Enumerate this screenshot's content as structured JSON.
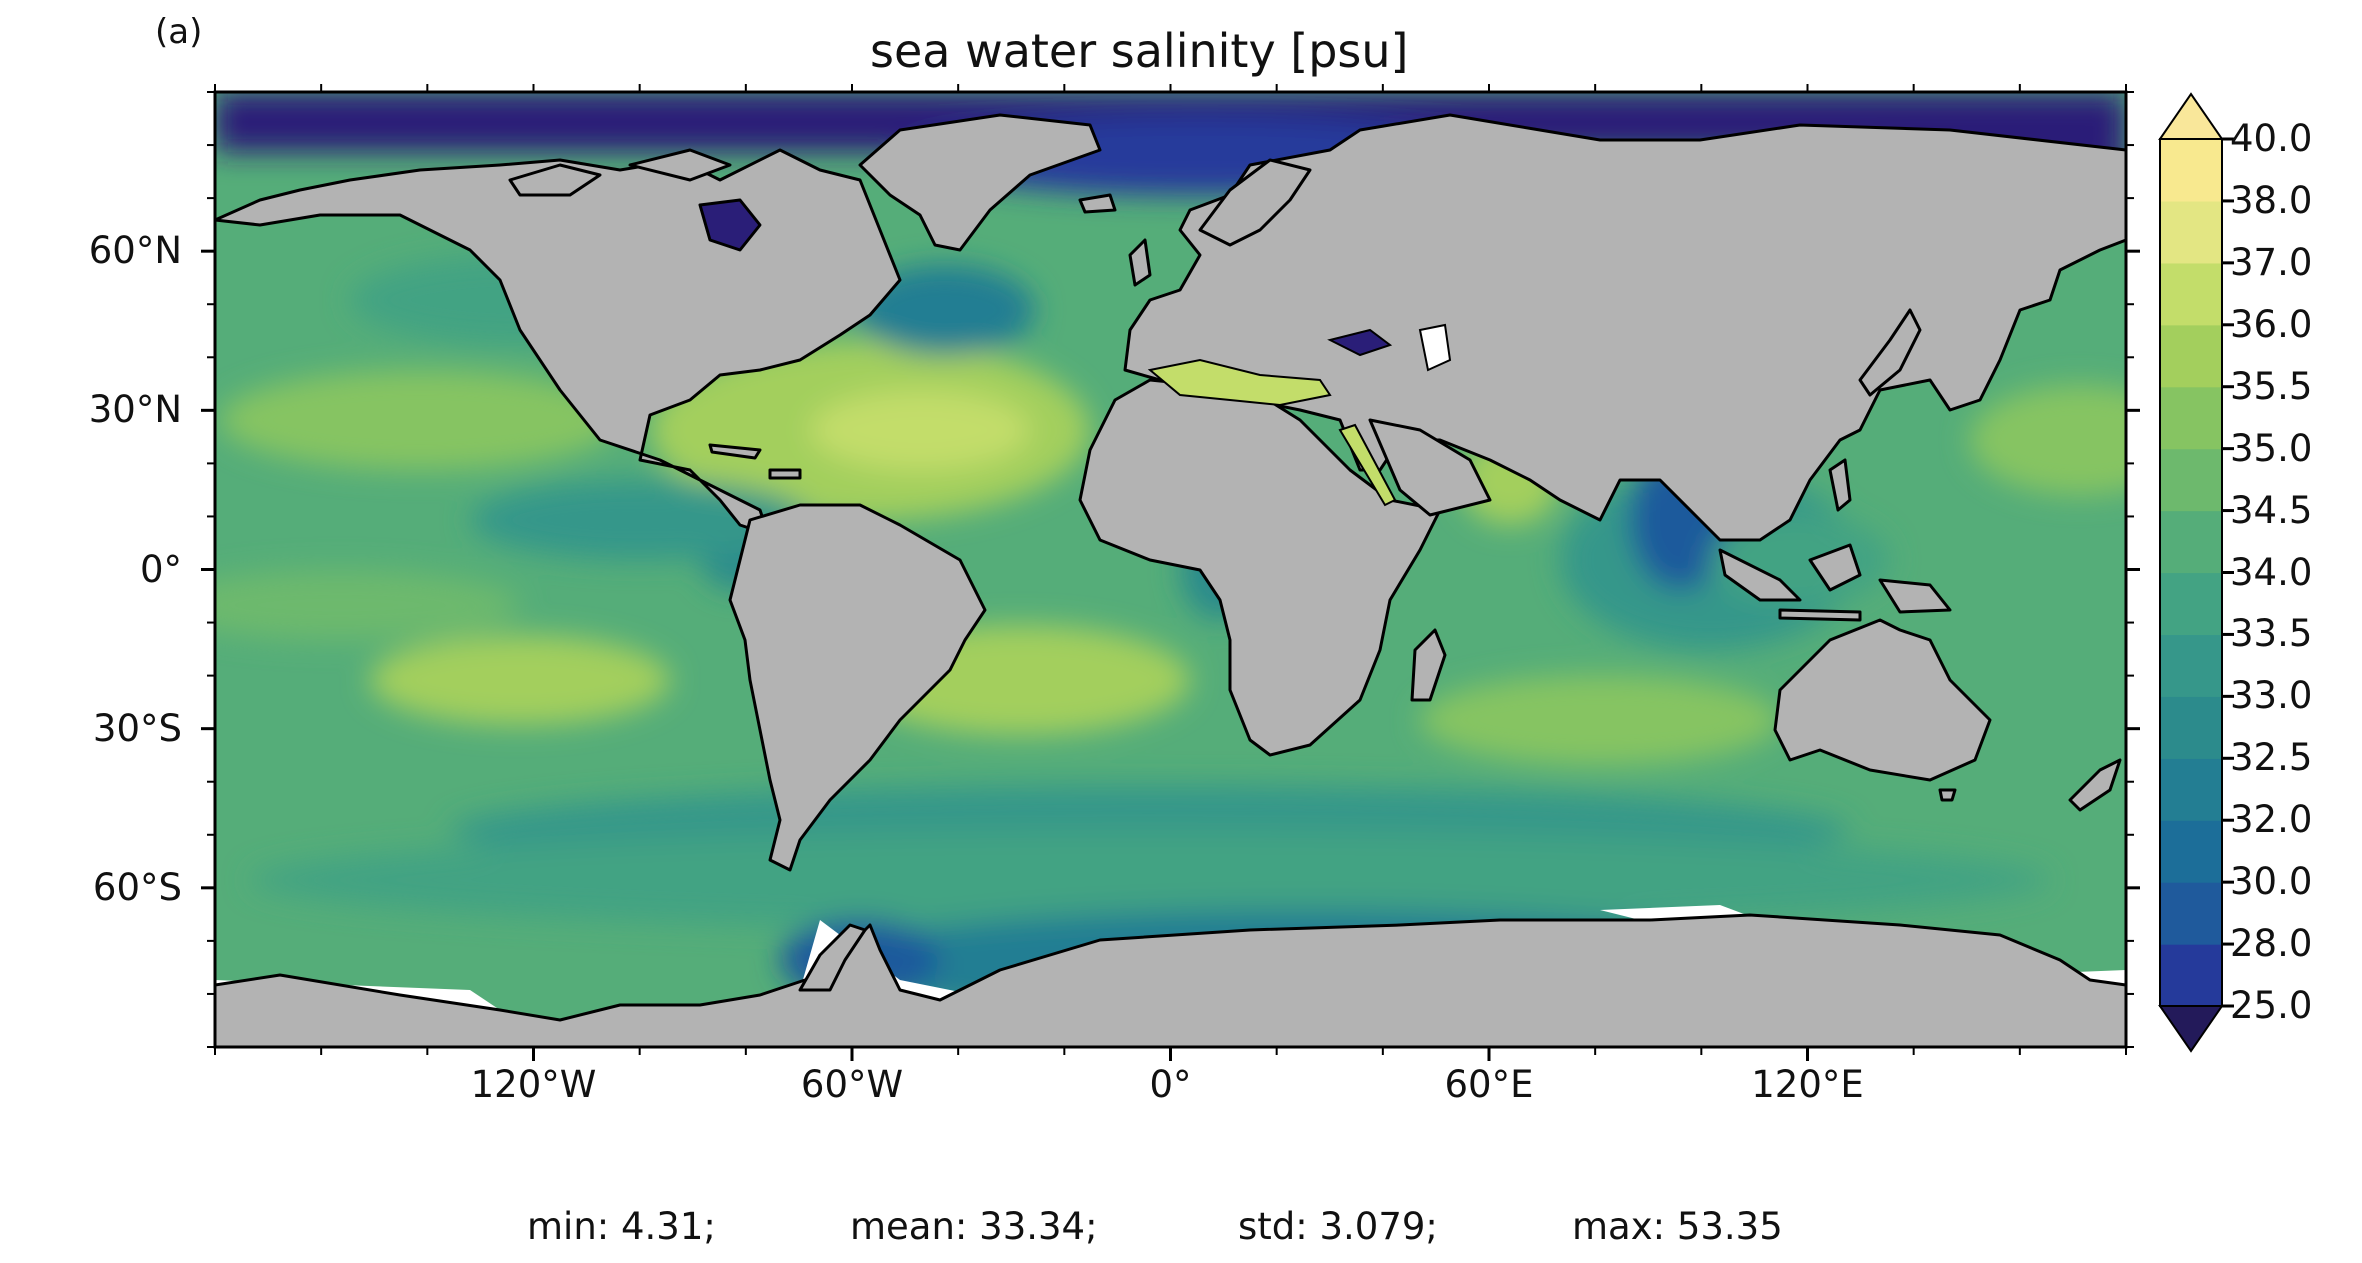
{
  "panel_label": "(a)",
  "title": "sea water salinity [psu]",
  "map": {
    "projection": "PlateCarree",
    "extent_lon": [
      -180,
      180
    ],
    "extent_lat": [
      -90,
      90
    ],
    "land_color": "#b3b3b3",
    "ice_color": "#ffffff",
    "coastline_color": "#000000",
    "lat_ticks": [
      {
        "value": 60,
        "label": "60°N"
      },
      {
        "value": 30,
        "label": "30°N"
      },
      {
        "value": 0,
        "label": "0°"
      },
      {
        "value": -30,
        "label": "30°S"
      },
      {
        "value": -60,
        "label": "60°S"
      }
    ],
    "lon_ticks": [
      {
        "value": -120,
        "label": "120°W"
      },
      {
        "value": -60,
        "label": "60°W"
      },
      {
        "value": 0,
        "label": "0°"
      },
      {
        "value": 60,
        "label": "60°E"
      },
      {
        "value": 120,
        "label": "120°E"
      }
    ]
  },
  "colorbar": {
    "levels": [
      "25.0",
      "28.0",
      "30.0",
      "32.0",
      "32.5",
      "33.0",
      "33.5",
      "34.0",
      "34.5",
      "35.0",
      "35.5",
      "36.0",
      "37.0",
      "38.0",
      "40.0"
    ],
    "colors": [
      "#2a1e78",
      "#253a9b",
      "#1f5a9c",
      "#1c6e99",
      "#237e93",
      "#2c8b8c",
      "#36978a",
      "#43a383",
      "#55ad79",
      "#6db96d",
      "#86c462",
      "#a3cf5d",
      "#c3dd6a",
      "#e3e683",
      "#f8e98f"
    ],
    "extend_low_color": "#231a5a",
    "extend_high_color": "#f9e79a"
  },
  "stats": {
    "min": "min: 4.31;",
    "mean": "mean: 33.34;",
    "std": "std: 3.079;",
    "max": "max: 53.35"
  }
}
